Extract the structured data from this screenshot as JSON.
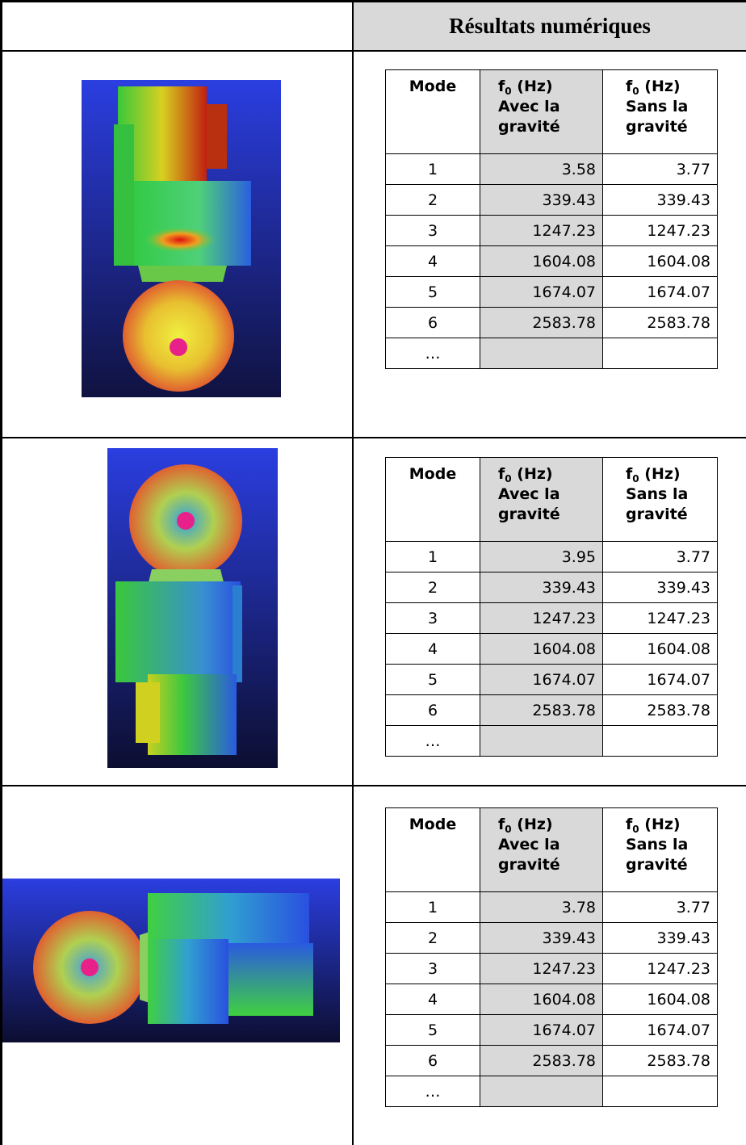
{
  "header": {
    "title": "Résultats numériques"
  },
  "table_headers": {
    "mode": "Mode",
    "freq_label": "f",
    "freq_sub": "0",
    "freq_unit": " (Hz)",
    "with_gravity": [
      "Avec la",
      "gravité"
    ],
    "without_gravity": [
      "Sans la",
      "gravité"
    ]
  },
  "rows": [
    {
      "table": [
        {
          "mode": "1",
          "avec": "3.58",
          "sans": "3.77"
        },
        {
          "mode": "2",
          "avec": "339.43",
          "sans": "339.43"
        },
        {
          "mode": "3",
          "avec": "1247.23",
          "sans": "1247.23"
        },
        {
          "mode": "4",
          "avec": "1604.08",
          "sans": "1604.08"
        },
        {
          "mode": "5",
          "avec": "1674.07",
          "sans": "1674.07"
        },
        {
          "mode": "6",
          "avec": "2583.78",
          "sans": "2583.78"
        },
        {
          "mode": "…",
          "avec": "",
          "sans": ""
        }
      ]
    },
    {
      "table": [
        {
          "mode": "1",
          "avec": "3.95",
          "sans": "3.77"
        },
        {
          "mode": "2",
          "avec": "339.43",
          "sans": "339.43"
        },
        {
          "mode": "3",
          "avec": "1247.23",
          "sans": "1247.23"
        },
        {
          "mode": "4",
          "avec": "1604.08",
          "sans": "1604.08"
        },
        {
          "mode": "5",
          "avec": "1674.07",
          "sans": "1674.07"
        },
        {
          "mode": "6",
          "avec": "2583.78",
          "sans": "2583.78"
        },
        {
          "mode": "…",
          "avec": "",
          "sans": ""
        }
      ]
    },
    {
      "table": [
        {
          "mode": "1",
          "avec": "3.78",
          "sans": "3.77"
        },
        {
          "mode": "2",
          "avec": "339.43",
          "sans": "339.43"
        },
        {
          "mode": "3",
          "avec": "1247.23",
          "sans": "1247.23"
        },
        {
          "mode": "4",
          "avec": "1604.08",
          "sans": "1604.08"
        },
        {
          "mode": "5",
          "avec": "1674.07",
          "sans": "1674.07"
        },
        {
          "mode": "6",
          "avec": "2583.78",
          "sans": "2583.78"
        },
        {
          "mode": "…",
          "avec": "",
          "sans": ""
        }
      ]
    }
  ]
}
